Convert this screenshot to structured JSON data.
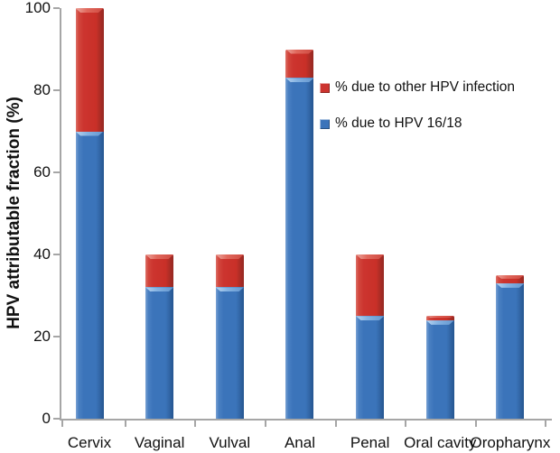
{
  "figure_title": "",
  "chart_data": {
    "type": "bar",
    "stacked": true,
    "title": "",
    "xlabel": "",
    "ylabel": "HPV attributable fraction (%)",
    "ylim": [
      0,
      100
    ],
    "yticks": [
      0,
      20,
      40,
      60,
      80,
      100
    ],
    "grid": false,
    "categories": [
      "Cervix",
      "Vaginal",
      "Vulval",
      "Anal",
      "Penal",
      "Oral cavity",
      "Oropharynx"
    ],
    "series": [
      {
        "name": "% due to HPV 16/18",
        "color": "#3b74ba",
        "values": [
          70,
          32,
          32,
          83,
          25,
          24,
          33
        ]
      },
      {
        "name": "% due to other HPV infection",
        "color": "#cc342f",
        "values": [
          30,
          8,
          8,
          7,
          15,
          1,
          2
        ]
      }
    ],
    "stack_totals": [
      100,
      40,
      40,
      90,
      40,
      25,
      35
    ],
    "legend": {
      "position": "inside-upper-right",
      "entries": [
        {
          "label": "% due to other HPV infection",
          "color": "#cc342f"
        },
        {
          "label": "% due to HPV 16/18",
          "color": "#3b74ba"
        }
      ]
    },
    "colors": {
      "axis": "#a6a6a6",
      "text": "#111111",
      "blue_main": "#3b74ba",
      "red_main": "#cc342f"
    }
  }
}
